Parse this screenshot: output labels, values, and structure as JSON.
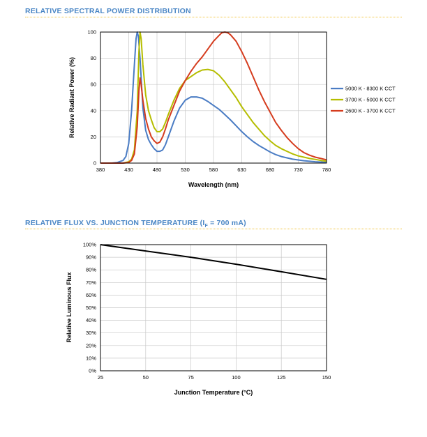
{
  "section1": {
    "title": "RELATIVE SPECTRAL POWER DISTRIBUTION"
  },
  "section2": {
    "title_prefix": "RELATIVE FLUX VS. JUNCTION TEMPERATURE (I",
    "title_sub": "F",
    "title_suffix": " = 700 mA)"
  },
  "colors": {
    "accent_title": "#4a86c5",
    "divider": "#f2c33a"
  },
  "chart_data": [
    {
      "type": "line",
      "xlabel": "Wavelength (nm)",
      "ylabel": "Relative Radiant Power (%)",
      "xlim": [
        380,
        780
      ],
      "ylim": [
        0,
        100
      ],
      "xticks": [
        380,
        430,
        480,
        530,
        580,
        630,
        680,
        730,
        780
      ],
      "yticks": [
        0,
        20,
        40,
        60,
        80,
        100
      ],
      "grid": true,
      "legend_position": "right",
      "series": [
        {
          "name": "5000 K - 8300 K CCT",
          "color": "#4a7cc4",
          "x": [
            380,
            400,
            410,
            420,
            425,
            430,
            435,
            440,
            443,
            445,
            447,
            450,
            455,
            460,
            465,
            470,
            475,
            480,
            485,
            490,
            495,
            500,
            510,
            520,
            530,
            540,
            550,
            560,
            570,
            580,
            590,
            600,
            610,
            620,
            630,
            640,
            650,
            660,
            670,
            680,
            690,
            700,
            710,
            720,
            730,
            740,
            750,
            760,
            770,
            780
          ],
          "y": [
            0,
            0,
            0.5,
            2,
            5,
            15,
            40,
            75,
            95,
            100,
            97,
            80,
            42,
            25,
            18,
            14,
            11,
            9,
            9,
            10,
            14,
            20,
            32,
            42,
            48,
            50.5,
            50.5,
            49.5,
            47,
            44,
            41,
            37,
            33,
            28.5,
            24,
            20,
            16.5,
            13.5,
            11,
            8.5,
            6.5,
            5,
            4,
            3,
            2.4,
            1.8,
            1.4,
            1,
            0.8,
            0.5
          ]
        },
        {
          "name": "3700 K - 5000 K CCT",
          "color": "#b5bd00",
          "x": [
            380,
            420,
            430,
            435,
            440,
            445,
            448,
            450,
            452,
            455,
            460,
            465,
            470,
            475,
            480,
            485,
            490,
            495,
            500,
            510,
            520,
            530,
            540,
            550,
            560,
            570,
            580,
            590,
            600,
            610,
            620,
            630,
            640,
            650,
            660,
            670,
            680,
            690,
            700,
            710,
            720,
            730,
            740,
            750,
            760,
            770,
            780
          ],
          "y": [
            0,
            0,
            1,
            3,
            10,
            40,
            85,
            100,
            95,
            75,
            52,
            40,
            33,
            27,
            24,
            24,
            26,
            31,
            37,
            48,
            57,
            63,
            66,
            69,
            71,
            71.5,
            70.5,
            67,
            62,
            56,
            50,
            43,
            37,
            31,
            26,
            21,
            17,
            13.5,
            11,
            9,
            7,
            5.5,
            4.5,
            3.5,
            2.8,
            2,
            1.5
          ]
        },
        {
          "name": "2600 K - 3700 K CCT",
          "color": "#d53c1e",
          "x": [
            380,
            420,
            430,
            435,
            440,
            445,
            448,
            450,
            452,
            455,
            460,
            465,
            470,
            475,
            480,
            485,
            490,
            495,
            500,
            510,
            520,
            530,
            540,
            550,
            560,
            570,
            580,
            590,
            595,
            600,
            605,
            610,
            620,
            630,
            640,
            650,
            660,
            670,
            680,
            690,
            700,
            710,
            720,
            730,
            740,
            750,
            760,
            770,
            780
          ],
          "y": [
            0,
            0,
            0.5,
            2,
            7,
            28,
            55,
            65,
            60,
            48,
            34,
            26,
            20,
            17,
            15,
            16,
            20,
            26,
            33,
            44,
            55,
            63,
            70,
            76,
            81,
            87,
            93,
            97.5,
            99.5,
            100,
            99.5,
            98,
            93,
            85,
            76,
            66,
            56,
            47,
            39,
            31,
            25,
            19.5,
            15,
            11,
            8,
            6,
            4.5,
            3.5,
            2.5
          ]
        }
      ]
    },
    {
      "type": "line",
      "xlabel": "Junction Temperature (°C)",
      "ylabel": "Relative Luminous Flux",
      "xlim": [
        25,
        150
      ],
      "ylim": [
        0,
        100
      ],
      "xticks": [
        25,
        50,
        75,
        100,
        125,
        150
      ],
      "yticks": [
        0,
        10,
        20,
        30,
        40,
        50,
        60,
        70,
        80,
        90,
        100
      ],
      "ytick_labels": [
        "0%",
        "10%",
        "20%",
        "30%",
        "40%",
        "50%",
        "60%",
        "70%",
        "80%",
        "90%",
        "100%"
      ],
      "grid": true,
      "series": [
        {
          "color": "#000000",
          "x": [
            25,
            50,
            75,
            100,
            125,
            150
          ],
          "y": [
            100,
            95,
            90,
            84.5,
            78.5,
            72.5
          ]
        }
      ]
    }
  ]
}
